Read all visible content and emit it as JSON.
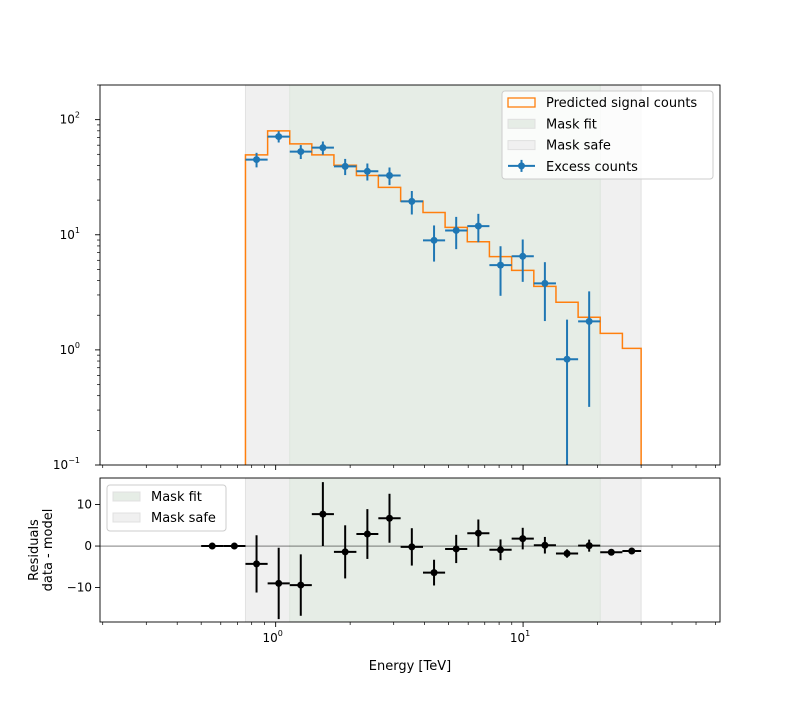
{
  "chart_data": [
    {
      "type": "line",
      "panel": "top",
      "xscale": "log",
      "yscale": "log",
      "xlim": [
        0.195,
        62.5
      ],
      "ylim": [
        0.1,
        200
      ],
      "grid": false,
      "legend_placement": "top-right",
      "x_ticks": [
        {
          "base": "10",
          "exp": "0",
          "value": 1
        },
        {
          "base": "10",
          "exp": "1",
          "value": 10
        }
      ],
      "y_ticks": [
        {
          "base": "10",
          "exp": "−1",
          "value": 0.1
        },
        {
          "base": "10",
          "exp": "0",
          "value": 1
        },
        {
          "base": "10",
          "exp": "1",
          "value": 10
        },
        {
          "base": "10",
          "exp": "2",
          "value": 100
        }
      ],
      "energy_bin_edges_TeV": [
        0.5,
        0.614,
        0.755,
        0.928,
        1.14,
        1.4,
        1.72,
        2.12,
        2.6,
        3.2,
        3.94,
        4.84,
        5.95,
        7.31,
        8.99,
        11.05,
        13.58,
        16.69,
        20.5,
        25.2,
        30.0
      ],
      "mask_safe_TeV": [
        0.755,
        30.0
      ],
      "mask_fit_TeV": [
        1.14,
        20.5
      ],
      "series": [
        {
          "name": "Predicted signal counts",
          "kind": "step",
          "color": "#ff7f0e",
          "values": [
            0,
            0,
            49.4,
            79.8,
            61.6,
            49.4,
            40.2,
            32.7,
            25.8,
            19.6,
            15.6,
            11.6,
            8.7,
            6.46,
            4.9,
            3.56,
            2.59,
            1.92,
            1.39,
            1.03
          ]
        },
        {
          "name": "Excess counts",
          "kind": "errorbar",
          "color": "#1f77b4",
          "values": [
            null,
            null,
            45,
            71.3,
            52.8,
            57.1,
            39.3,
            35.6,
            32.7,
            19.5,
            8.95,
            10.9,
            11.9,
            5.45,
            6.5,
            3.78,
            0.83,
            1.77,
            null,
            null
          ],
          "yerr": [
            null,
            null,
            6.5,
            8,
            7.3,
            7.5,
            6.3,
            6,
            5.7,
            4.5,
            3.1,
            3.4,
            3.3,
            2.5,
            2.6,
            2.0,
            1.0,
            1.45,
            null,
            null
          ]
        }
      ],
      "legend": [
        {
          "label": "Predicted signal counts",
          "kind": "step-patch",
          "color": "#ff7f0e"
        },
        {
          "label": "Mask fit",
          "kind": "patch",
          "color": "#e6ede6"
        },
        {
          "label": "Mask safe",
          "kind": "patch",
          "color": "#f0f0f0"
        },
        {
          "label": "Excess counts",
          "kind": "errorbar",
          "color": "#1f77b4"
        }
      ]
    },
    {
      "type": "scatter",
      "panel": "bottom",
      "xscale": "log",
      "xlim": [
        0.195,
        62.5
      ],
      "ylim": [
        -18.3,
        16.4
      ],
      "xlabel": "Energy [TeV]",
      "ylabel": [
        "Residuals",
        "data - model"
      ],
      "x_ticks": [
        {
          "base": "10",
          "exp": "0",
          "value": 1
        },
        {
          "base": "10",
          "exp": "1",
          "value": 10
        }
      ],
      "y_ticks": [
        {
          "label": "−10",
          "value": -10
        },
        {
          "label": "0",
          "value": 0
        },
        {
          "label": "10",
          "value": 10
        }
      ],
      "grid": false,
      "legend_placement": "top-left",
      "series": [
        {
          "kind": "errorbar",
          "color": "#000000",
          "values": [
            0,
            0,
            -4.3,
            -9.0,
            -9.4,
            7.7,
            -1.4,
            2.9,
            6.7,
            -0.2,
            -6.4,
            -0.7,
            3.1,
            -0.9,
            1.8,
            0.2,
            -1.8,
            0.1,
            -1.5,
            -1.2
          ],
          "yerr": [
            0,
            0,
            6.9,
            8.6,
            7.4,
            7.7,
            6.4,
            6,
            5.9,
            4.5,
            3.1,
            3.4,
            3.3,
            2.5,
            2.6,
            2.0,
            1.0,
            1.45,
            0,
            0
          ]
        }
      ],
      "legend": [
        {
          "label": "Mask fit",
          "kind": "patch",
          "color": "#e6ede6"
        },
        {
          "label": "Mask safe",
          "kind": "patch",
          "color": "#f0f0f0"
        }
      ]
    }
  ]
}
